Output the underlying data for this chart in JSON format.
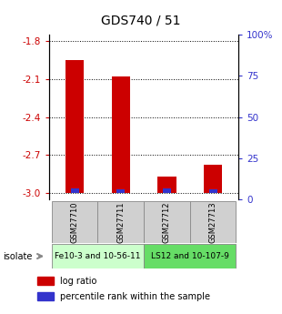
{
  "title": "GDS740 / 51",
  "samples": [
    "GSM27710",
    "GSM27711",
    "GSM27712",
    "GSM27713"
  ],
  "log_ratios": [
    -1.95,
    -2.08,
    -2.87,
    -2.78
  ],
  "percentile_ranks": [
    3,
    2,
    3,
    2
  ],
  "ylim_left": [
    -3.05,
    -1.75
  ],
  "ylim_right": [
    0,
    100
  ],
  "yticks_left": [
    -3.0,
    -2.7,
    -2.4,
    -2.1,
    -1.8
  ],
  "yticks_right": [
    0,
    25,
    50,
    75,
    100
  ],
  "ytick_labels_right": [
    "0",
    "25",
    "50",
    "75",
    "100%"
  ],
  "bar_color_red": "#cc0000",
  "bar_color_blue": "#3333cc",
  "bar_width": 0.4,
  "groups": [
    {
      "label": "Fe10-3 and 10-56-11",
      "color": "#ccffcc",
      "indices": [
        0,
        1
      ]
    },
    {
      "label": "LS12 and 10-107-9",
      "color": "#66dd66",
      "indices": [
        2,
        3
      ]
    }
  ],
  "isolate_label": "isolate",
  "legend_items": [
    {
      "label": "log ratio",
      "color": "#cc0000"
    },
    {
      "label": "percentile rank within the sample",
      "color": "#3333cc"
    }
  ],
  "baseline": -3.0
}
